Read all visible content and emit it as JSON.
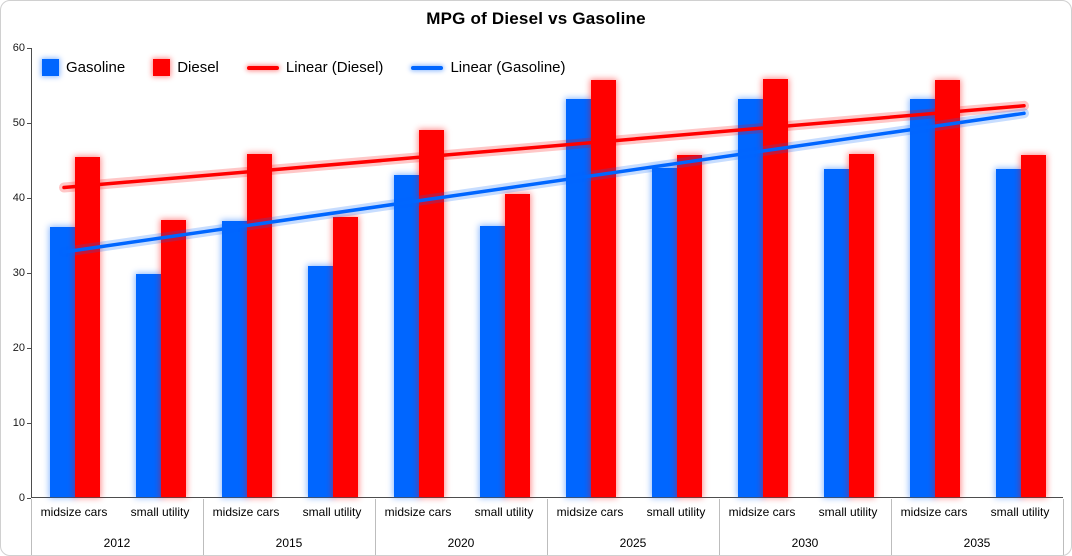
{
  "chart_data": {
    "type": "bar",
    "title": "MPG of Diesel vs Gasoline",
    "years": [
      "2012",
      "2015",
      "2020",
      "2025",
      "2030",
      "2035"
    ],
    "subcategories": [
      "midsize cars",
      "small utility"
    ],
    "series": [
      {
        "name": "Gasoline",
        "color": "#0066FF",
        "values": [
          [
            36.0,
            29.7
          ],
          [
            36.8,
            30.8
          ],
          [
            42.9,
            36.1
          ],
          [
            53.1,
            43.9
          ],
          [
            53.1,
            43.8
          ],
          [
            53.1,
            43.8
          ]
        ]
      },
      {
        "name": "Diesel",
        "color": "#FF0000",
        "values": [
          [
            45.3,
            36.9
          ],
          [
            45.7,
            37.4
          ],
          [
            49.0,
            40.4
          ],
          [
            55.6,
            45.6
          ],
          [
            55.7,
            45.7
          ],
          [
            55.6,
            45.6
          ]
        ]
      }
    ],
    "trendlines": [
      {
        "name": "Linear (Diesel)",
        "color": "#FF0000",
        "start": 41.4,
        "end": 52.3
      },
      {
        "name": "Linear (Gasoline)",
        "color": "#0066FF",
        "start": 32.8,
        "end": 51.3
      }
    ],
    "ylim": [
      0,
      60
    ],
    "yticks": [
      0,
      10,
      20,
      30,
      40,
      50,
      60
    ],
    "grid": false,
    "legend_position": "top-left"
  }
}
